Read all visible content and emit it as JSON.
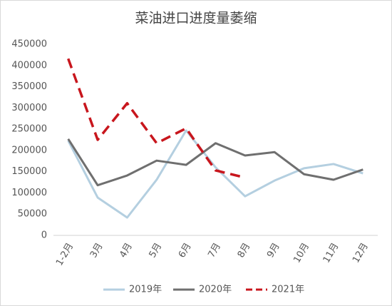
{
  "chart_data": {
    "type": "line",
    "title": "菜油进口进度量萎缩",
    "categories": [
      "1-2月",
      "3月",
      "4月",
      "5月",
      "6月",
      "7月",
      "8月",
      "9月",
      "10月",
      "11月",
      "12月"
    ],
    "series": [
      {
        "name": "2019年",
        "color": "#b4cfe0",
        "dash": false,
        "values": [
          223000,
          89000,
          42000,
          131000,
          247000,
          160000,
          92000,
          129000,
          158000,
          168000,
          146000
        ]
      },
      {
        "name": "2020年",
        "color": "#6f6f6f",
        "dash": false,
        "values": [
          227000,
          118000,
          141000,
          176000,
          166000,
          217000,
          188000,
          196000,
          144000,
          131000,
          155000
        ]
      },
      {
        "name": "2021年",
        "color": "#c8161d",
        "dash": true,
        "values": [
          416000,
          225000,
          311000,
          217000,
          252000,
          153000,
          136000,
          null,
          null,
          null,
          null
        ]
      }
    ],
    "ylim": [
      0,
      450000
    ],
    "yticks": [
      0,
      50000,
      100000,
      150000,
      200000,
      250000,
      300000,
      350000,
      400000,
      450000
    ],
    "grid": false,
    "legend": "bottom"
  }
}
